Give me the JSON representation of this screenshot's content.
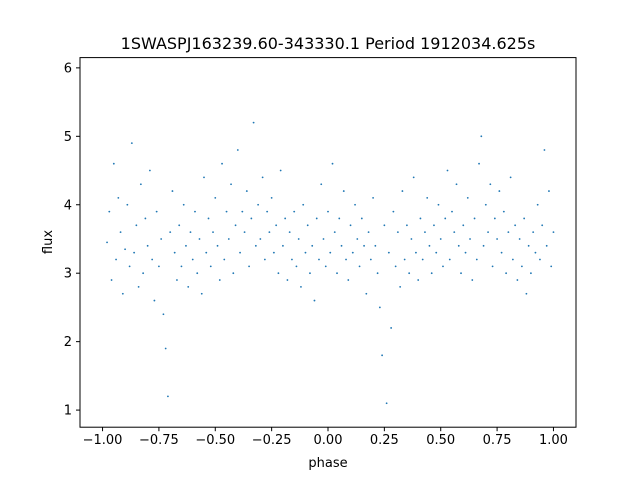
{
  "chart_data": {
    "type": "scatter",
    "title": "1SWASPJ163239.60-343330.1 Period 1912034.625s",
    "xlabel": "phase",
    "ylabel": "flux",
    "xlim": [
      -1.1,
      1.1
    ],
    "ylim": [
      0.75,
      6.15
    ],
    "xticks": [
      -1.0,
      -0.75,
      -0.5,
      -0.25,
      0.0,
      0.25,
      0.5,
      0.75,
      1.0
    ],
    "xtick_labels": [
      "−1.00",
      "−0.75",
      "−0.50",
      "−0.25",
      "0.00",
      "0.25",
      "0.50",
      "0.75",
      "1.00"
    ],
    "yticks": [
      1,
      2,
      3,
      4,
      5,
      6
    ],
    "ytick_labels": [
      "1",
      "2",
      "3",
      "4",
      "5",
      "6"
    ],
    "grid": false,
    "marker_color": "#1f77b4",
    "series": [
      {
        "points": [
          [
            -0.98,
            3.45
          ],
          [
            -0.97,
            3.9
          ],
          [
            -0.96,
            2.9
          ],
          [
            -0.95,
            4.6
          ],
          [
            -0.94,
            3.2
          ],
          [
            -0.93,
            4.1
          ],
          [
            -0.92,
            3.6
          ],
          [
            -0.91,
            2.7
          ],
          [
            -0.9,
            3.35
          ],
          [
            -0.89,
            4.0
          ],
          [
            -0.88,
            3.1
          ],
          [
            -0.87,
            4.9
          ],
          [
            -0.86,
            3.3
          ],
          [
            -0.85,
            3.7
          ],
          [
            -0.84,
            2.8
          ],
          [
            -0.83,
            4.3
          ],
          [
            -0.82,
            3.0
          ],
          [
            -0.81,
            3.8
          ],
          [
            -0.8,
            3.4
          ],
          [
            -0.79,
            4.5
          ],
          [
            -0.78,
            3.2
          ],
          [
            -0.77,
            2.6
          ],
          [
            -0.76,
            3.9
          ],
          [
            -0.75,
            3.1
          ],
          [
            -0.74,
            3.5
          ],
          [
            -0.73,
            2.4
          ],
          [
            -0.72,
            1.9
          ],
          [
            -0.71,
            1.2
          ],
          [
            -0.7,
            3.6
          ],
          [
            -0.69,
            4.2
          ],
          [
            -0.68,
            3.3
          ],
          [
            -0.67,
            2.9
          ],
          [
            -0.66,
            3.7
          ],
          [
            -0.65,
            3.1
          ],
          [
            -0.64,
            4.0
          ],
          [
            -0.63,
            3.4
          ],
          [
            -0.62,
            2.8
          ],
          [
            -0.61,
            3.6
          ],
          [
            -0.6,
            3.2
          ],
          [
            -0.59,
            3.9
          ],
          [
            -0.58,
            3.0
          ],
          [
            -0.57,
            3.5
          ],
          [
            -0.56,
            2.7
          ],
          [
            -0.55,
            4.4
          ],
          [
            -0.54,
            3.3
          ],
          [
            -0.53,
            3.8
          ],
          [
            -0.52,
            3.1
          ],
          [
            -0.51,
            3.6
          ],
          [
            -0.5,
            4.1
          ],
          [
            -0.49,
            3.4
          ],
          [
            -0.48,
            2.9
          ],
          [
            -0.47,
            4.6
          ],
          [
            -0.46,
            3.2
          ],
          [
            -0.45,
            3.9
          ],
          [
            -0.44,
            3.5
          ],
          [
            -0.43,
            4.3
          ],
          [
            -0.42,
            3.0
          ],
          [
            -0.41,
            3.7
          ],
          [
            -0.4,
            4.8
          ],
          [
            -0.39,
            3.3
          ],
          [
            -0.38,
            3.9
          ],
          [
            -0.37,
            3.6
          ],
          [
            -0.36,
            4.2
          ],
          [
            -0.35,
            3.1
          ],
          [
            -0.34,
            3.8
          ],
          [
            -0.33,
            5.2
          ],
          [
            -0.32,
            3.4
          ],
          [
            -0.31,
            4.0
          ],
          [
            -0.3,
            3.5
          ],
          [
            -0.29,
            4.4
          ],
          [
            -0.28,
            3.2
          ],
          [
            -0.27,
            3.9
          ],
          [
            -0.26,
            3.6
          ],
          [
            -0.25,
            4.1
          ],
          [
            -0.24,
            3.3
          ],
          [
            -0.23,
            3.7
          ],
          [
            -0.22,
            3.0
          ],
          [
            -0.21,
            4.5
          ],
          [
            -0.2,
            3.4
          ],
          [
            -0.19,
            3.8
          ],
          [
            -0.18,
            2.9
          ],
          [
            -0.17,
            3.6
          ],
          [
            -0.16,
            3.2
          ],
          [
            -0.15,
            3.9
          ],
          [
            -0.14,
            3.1
          ],
          [
            -0.13,
            3.5
          ],
          [
            -0.12,
            2.8
          ],
          [
            -0.11,
            4.0
          ],
          [
            -0.1,
            3.3
          ],
          [
            -0.09,
            3.7
          ],
          [
            -0.08,
            3.0
          ],
          [
            -0.07,
            3.4
          ],
          [
            -0.06,
            2.6
          ],
          [
            -0.05,
            3.8
          ],
          [
            -0.04,
            3.2
          ],
          [
            -0.03,
            4.3
          ],
          [
            -0.02,
            3.5
          ],
          [
            -0.01,
            3.1
          ],
          [
            0.0,
            3.9
          ],
          [
            0.01,
            3.3
          ],
          [
            0.02,
            4.6
          ],
          [
            0.03,
            3.6
          ],
          [
            0.04,
            3.0
          ],
          [
            0.05,
            3.8
          ],
          [
            0.06,
            3.4
          ],
          [
            0.07,
            4.2
          ],
          [
            0.08,
            3.2
          ],
          [
            0.09,
            2.9
          ],
          [
            0.1,
            3.7
          ],
          [
            0.11,
            3.3
          ],
          [
            0.12,
            4.0
          ],
          [
            0.13,
            3.5
          ],
          [
            0.14,
            3.1
          ],
          [
            0.15,
            3.8
          ],
          [
            0.16,
            3.4
          ],
          [
            0.17,
            2.7
          ],
          [
            0.18,
            3.6
          ],
          [
            0.19,
            3.2
          ],
          [
            0.2,
            4.1
          ],
          [
            0.21,
            3.4
          ],
          [
            0.22,
            3.0
          ],
          [
            0.23,
            2.5
          ],
          [
            0.24,
            1.8
          ],
          [
            0.25,
            3.7
          ],
          [
            0.26,
            1.1
          ],
          [
            0.27,
            3.3
          ],
          [
            0.28,
            2.2
          ],
          [
            0.29,
            3.9
          ],
          [
            0.3,
            3.1
          ],
          [
            0.31,
            3.6
          ],
          [
            0.32,
            2.8
          ],
          [
            0.33,
            4.2
          ],
          [
            0.34,
            3.2
          ],
          [
            0.35,
            3.7
          ],
          [
            0.36,
            3.0
          ],
          [
            0.37,
            3.5
          ],
          [
            0.38,
            4.4
          ],
          [
            0.39,
            3.3
          ],
          [
            0.4,
            2.9
          ],
          [
            0.41,
            3.8
          ],
          [
            0.42,
            3.2
          ],
          [
            0.43,
            3.6
          ],
          [
            0.44,
            4.1
          ],
          [
            0.45,
            3.4
          ],
          [
            0.46,
            3.0
          ],
          [
            0.47,
            3.7
          ],
          [
            0.48,
            3.3
          ],
          [
            0.49,
            4.0
          ],
          [
            0.5,
            3.5
          ],
          [
            0.51,
            3.1
          ],
          [
            0.52,
            3.8
          ],
          [
            0.53,
            4.5
          ],
          [
            0.54,
            3.2
          ],
          [
            0.55,
            3.9
          ],
          [
            0.56,
            3.6
          ],
          [
            0.57,
            4.3
          ],
          [
            0.58,
            3.4
          ],
          [
            0.59,
            3.0
          ],
          [
            0.6,
            3.7
          ],
          [
            0.61,
            3.3
          ],
          [
            0.62,
            4.1
          ],
          [
            0.63,
            3.5
          ],
          [
            0.64,
            2.9
          ],
          [
            0.65,
            3.8
          ],
          [
            0.66,
            3.2
          ],
          [
            0.67,
            4.6
          ],
          [
            0.68,
            5.0
          ],
          [
            0.69,
            3.4
          ],
          [
            0.7,
            4.0
          ],
          [
            0.71,
            3.6
          ],
          [
            0.72,
            4.3
          ],
          [
            0.73,
            3.1
          ],
          [
            0.74,
            3.8
          ],
          [
            0.75,
            3.5
          ],
          [
            0.76,
            4.2
          ],
          [
            0.77,
            3.3
          ],
          [
            0.78,
            3.9
          ],
          [
            0.79,
            3.0
          ],
          [
            0.8,
            3.6
          ],
          [
            0.81,
            4.4
          ],
          [
            0.82,
            3.2
          ],
          [
            0.83,
            3.7
          ],
          [
            0.84,
            2.9
          ],
          [
            0.85,
            3.5
          ],
          [
            0.86,
            3.1
          ],
          [
            0.87,
            3.8
          ],
          [
            0.88,
            2.7
          ],
          [
            0.89,
            3.4
          ],
          [
            0.9,
            3.0
          ],
          [
            0.91,
            3.6
          ],
          [
            0.92,
            3.3
          ],
          [
            0.93,
            4.0
          ],
          [
            0.94,
            3.2
          ],
          [
            0.95,
            3.7
          ],
          [
            0.96,
            4.8
          ],
          [
            0.97,
            3.4
          ],
          [
            0.98,
            4.2
          ],
          [
            0.99,
            3.1
          ],
          [
            1.0,
            3.6
          ]
        ]
      }
    ]
  }
}
